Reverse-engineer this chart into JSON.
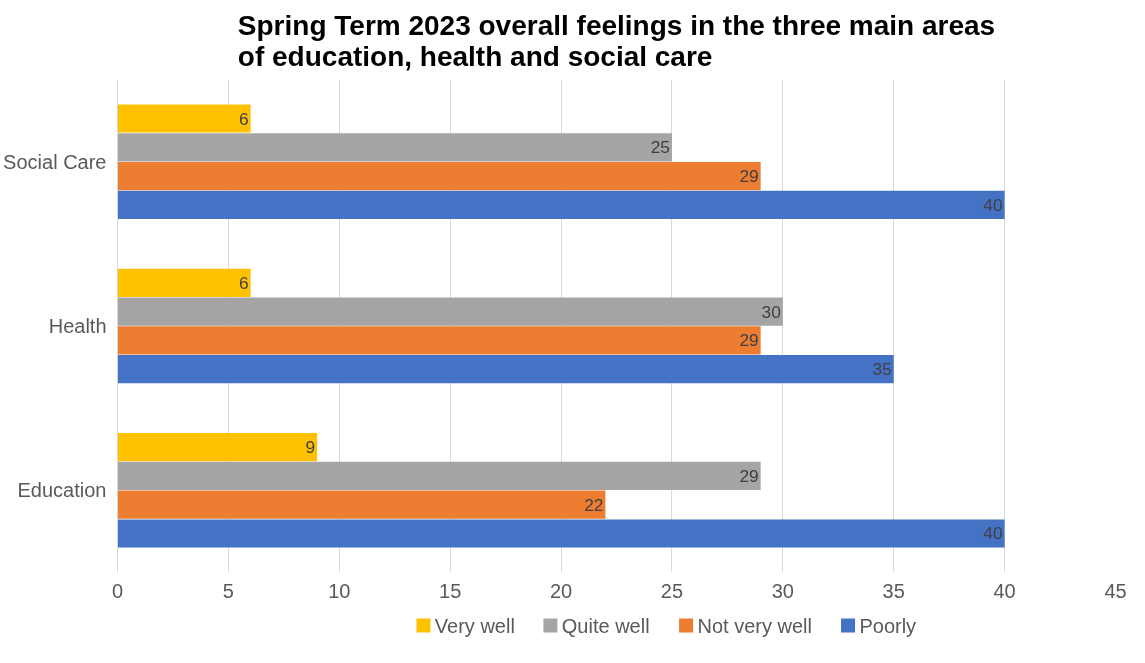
{
  "chart_data": {
    "type": "bar",
    "orientation": "horizontal",
    "title": "Spring Term 2023 overall feelings in the three main areas\nof education, health and social care",
    "categories": [
      "Social Care",
      "Health",
      "Education"
    ],
    "series": [
      {
        "name": "Very well",
        "color": "#ffc000",
        "values": [
          6,
          6,
          9
        ]
      },
      {
        "name": "Quite well",
        "color": "#a5a5a5",
        "values": [
          25,
          30,
          29
        ]
      },
      {
        "name": "Not very well",
        "color": "#ed7d31",
        "values": [
          29,
          29,
          22
        ]
      },
      {
        "name": "Poorly",
        "color": "#4472c4",
        "values": [
          40,
          35,
          40
        ]
      }
    ],
    "xlim": [
      0,
      45
    ],
    "xticks": [
      0,
      5,
      10,
      15,
      20,
      25,
      30,
      35,
      40,
      45
    ],
    "grid": "x",
    "legend": "bottom",
    "data_labels": true
  }
}
